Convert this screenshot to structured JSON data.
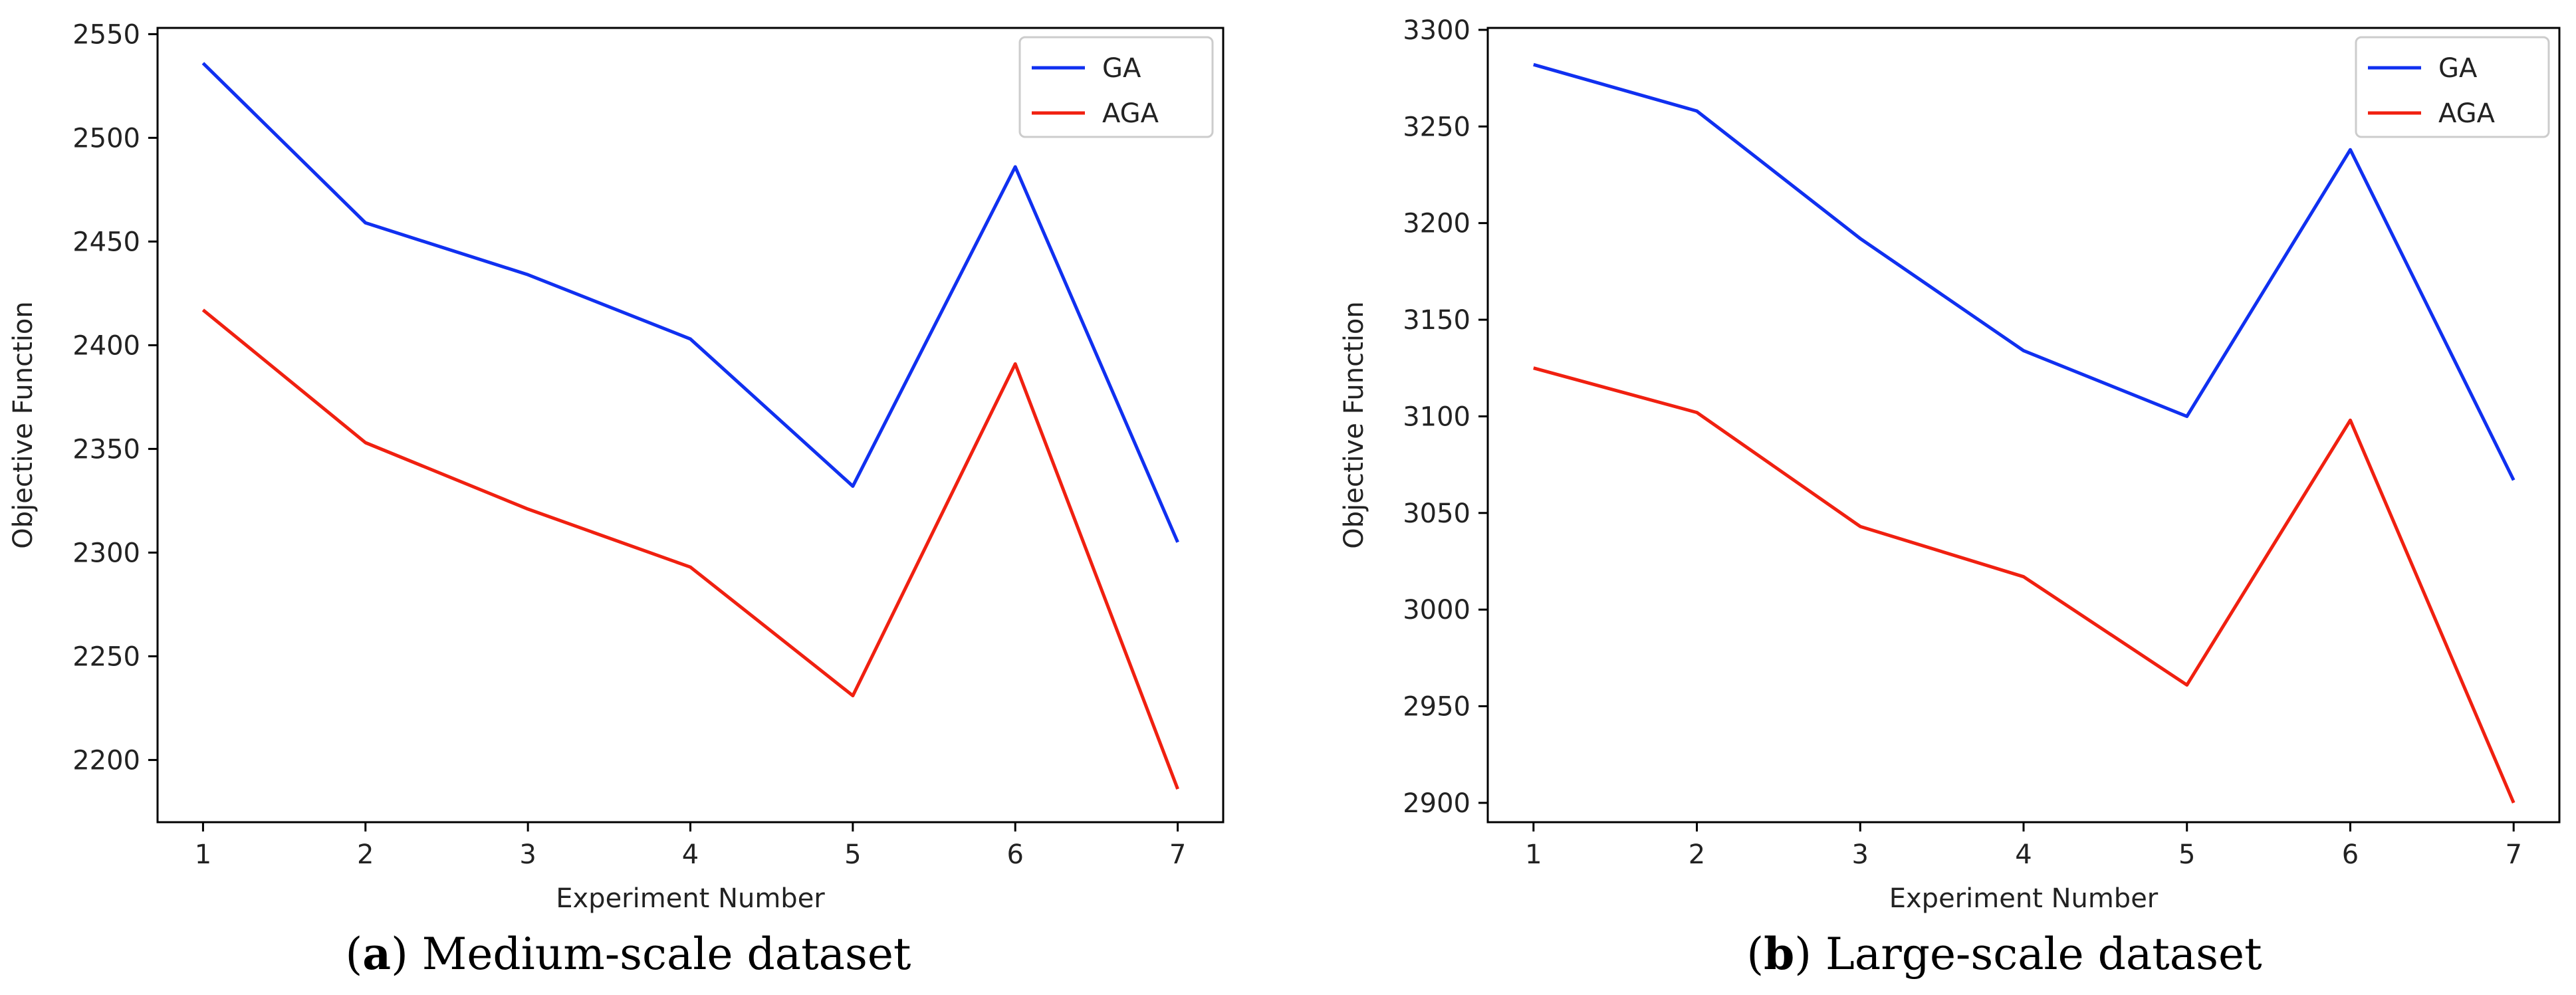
{
  "chart_data": [
    {
      "type": "line",
      "panel": "a",
      "caption_letter": "a",
      "caption_text": "Medium-scale dataset",
      "xlabel": "Experiment Number",
      "ylabel": "Objective Function",
      "x": [
        1,
        2,
        3,
        4,
        5,
        6,
        7
      ],
      "xticks": [
        1,
        2,
        3,
        4,
        5,
        6,
        7
      ],
      "yticks": [
        2200,
        2250,
        2300,
        2350,
        2400,
        2450,
        2500,
        2550
      ],
      "xlim": [
        0.72,
        7.28
      ],
      "ylim": [
        2170,
        2553
      ],
      "legend_position": "top-right",
      "series": [
        {
          "name": "GA",
          "color": "#1030f0",
          "values": [
            2536,
            2459,
            2434,
            2403,
            2332,
            2486,
            2305
          ]
        },
        {
          "name": "AGA",
          "color": "#f02010",
          "values": [
            2417,
            2353,
            2321,
            2293,
            2231,
            2391,
            2186
          ]
        }
      ]
    },
    {
      "type": "line",
      "panel": "b",
      "caption_letter": "b",
      "caption_text": "Large-scale dataset",
      "xlabel": "Experiment Number",
      "ylabel": "Objective Function",
      "x": [
        1,
        2,
        3,
        4,
        5,
        6,
        7
      ],
      "xticks": [
        1,
        2,
        3,
        4,
        5,
        6,
        7
      ],
      "yticks": [
        2900,
        2950,
        3000,
        3050,
        3100,
        3150,
        3200,
        3250,
        3300
      ],
      "xlim": [
        0.72,
        7.28
      ],
      "ylim": [
        2890,
        3301
      ],
      "legend_position": "top-right",
      "series": [
        {
          "name": "GA",
          "color": "#1030f0",
          "values": [
            3282,
            3258,
            3192,
            3134,
            3100,
            3238,
            3067
          ]
        },
        {
          "name": "AGA",
          "color": "#f02010",
          "values": [
            3125,
            3102,
            3043,
            3017,
            2961,
            3098,
            2900
          ]
        }
      ]
    }
  ]
}
